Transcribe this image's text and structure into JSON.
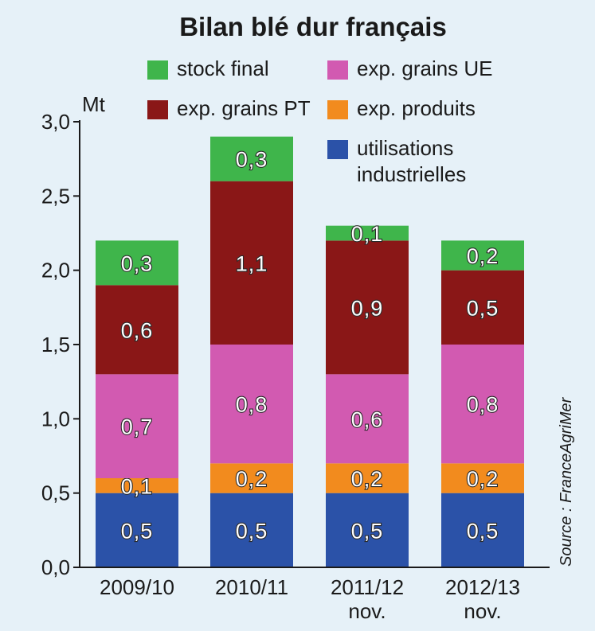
{
  "chart_data": {
    "type": "bar",
    "stacked": true,
    "title": "Bilan blé dur français",
    "ylabel": "Mt",
    "xlabel": "",
    "ylim": [
      0,
      3.0
    ],
    "yticks": [
      0.0,
      0.5,
      1.0,
      1.5,
      2.0,
      2.5,
      3.0
    ],
    "ytick_labels": [
      "0,0",
      "0,5",
      "1,0",
      "1,5",
      "2,0",
      "2,5",
      "3,0"
    ],
    "categories": [
      {
        "label": "2009/10",
        "sub": ""
      },
      {
        "label": "2010/11",
        "sub": ""
      },
      {
        "label": "2011/12",
        "sub": "nov."
      },
      {
        "label": "2012/13",
        "sub": "nov."
      }
    ],
    "series": [
      {
        "name": "utilisations industrielles",
        "legend_lines": [
          "utilisations",
          "industrielles"
        ],
        "color": "#2b52a8",
        "values": [
          0.5,
          0.5,
          0.5,
          0.5
        ],
        "labels": [
          "0,5",
          "0,5",
          "0,5",
          "0,5"
        ]
      },
      {
        "name": "exp. produits",
        "legend_lines": [
          "exp. produits"
        ],
        "color": "#f28b1e",
        "values": [
          0.1,
          0.2,
          0.2,
          0.2
        ],
        "labels": [
          "0,1",
          "0,2",
          "0,2",
          "0,2"
        ]
      },
      {
        "name": "exp. grains UE",
        "legend_lines": [
          "exp. grains UE"
        ],
        "color": "#d25ab1",
        "values": [
          0.7,
          0.8,
          0.6,
          0.8
        ],
        "labels": [
          "0,7",
          "0,8",
          "0,6",
          "0,8"
        ]
      },
      {
        "name": "exp. grains PT",
        "legend_lines": [
          "exp. grains PT"
        ],
        "color": "#8a1717",
        "values": [
          0.6,
          1.1,
          0.9,
          0.5
        ],
        "labels": [
          "0,6",
          "1,1",
          "0,9",
          "0,5"
        ]
      },
      {
        "name": "stock final",
        "legend_lines": [
          "stock final"
        ],
        "color": "#3fb54b",
        "values": [
          0.3,
          0.3,
          0.1,
          0.2
        ],
        "labels": [
          "0,3",
          "0,3",
          "0,1",
          "0,2"
        ]
      }
    ],
    "legend_order": [
      "stock final",
      "exp. grains UE",
      "exp. grains PT",
      "exp. produits",
      "utilisations industrielles"
    ],
    "legend_position": "top",
    "source": "Source : FranceAgriMer"
  }
}
